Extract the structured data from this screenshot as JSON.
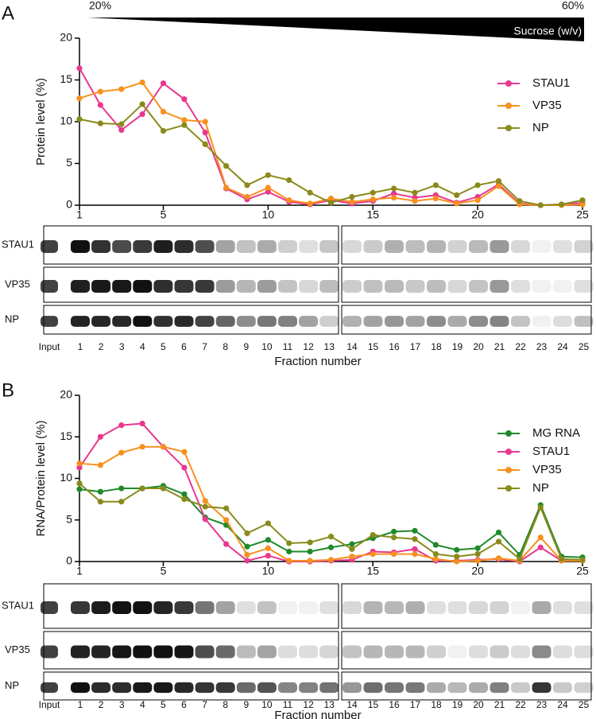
{
  "chart_data": [
    {
      "type": "line",
      "panel_label": "A",
      "gradient": {
        "start": "20%",
        "end": "60%",
        "label": "Sucrose (w/v)"
      },
      "ylabel": "Protein level (%)",
      "x": [
        1,
        2,
        3,
        4,
        5,
        6,
        7,
        8,
        9,
        10,
        11,
        12,
        13,
        14,
        15,
        16,
        17,
        18,
        19,
        20,
        21,
        22,
        23,
        24,
        25
      ],
      "xlim": [
        1,
        25
      ],
      "xticks": [
        1,
        5,
        10,
        15,
        20,
        25
      ],
      "ylim": [
        0,
        20
      ],
      "yticks": [
        0,
        5,
        10,
        15,
        20
      ],
      "legend": "upper right",
      "series": [
        {
          "name": "STAU1",
          "color": "#e8388f",
          "values": [
            16.4,
            12.0,
            9.0,
            10.9,
            14.6,
            12.7,
            8.7,
            2.0,
            0.7,
            1.6,
            0.4,
            0.1,
            0.6,
            0.2,
            0.5,
            1.4,
            0.9,
            1.2,
            0.3,
            1.0,
            2.5,
            0.2,
            0.0,
            0.1,
            0.3
          ]
        },
        {
          "name": "VP35",
          "color": "#f7901e",
          "values": [
            12.8,
            13.6,
            13.9,
            14.7,
            11.2,
            10.2,
            10.0,
            2.1,
            1.0,
            2.1,
            0.6,
            0.2,
            0.8,
            0.4,
            0.7,
            0.9,
            0.5,
            0.8,
            0.2,
            0.6,
            2.3,
            0.1,
            0.0,
            0.0,
            0.1
          ]
        },
        {
          "name": "NP",
          "color": "#8a8a1c",
          "values": [
            10.3,
            9.8,
            9.7,
            12.1,
            8.9,
            9.6,
            7.3,
            4.7,
            2.4,
            3.6,
            3.0,
            1.5,
            0.3,
            1.0,
            1.5,
            2.0,
            1.5,
            2.4,
            1.2,
            2.4,
            2.9,
            0.5,
            0.0,
            0.1,
            0.6
          ]
        }
      ],
      "blot": {
        "rows": [
          "STAU1",
          "VP35",
          "NP"
        ],
        "lanes": [
          "Input",
          "1",
          "2",
          "3",
          "4",
          "5",
          "6",
          "7",
          "8",
          "9",
          "10",
          "11",
          "12",
          "13",
          "14",
          "15",
          "16",
          "17",
          "18",
          "19",
          "20",
          "21",
          "22",
          "23",
          "24",
          "25"
        ],
        "xlabel": "Fraction number"
      }
    },
    {
      "type": "line",
      "panel_label": "B",
      "ylabel": "RNA/Protein level (%)",
      "x": [
        1,
        2,
        3,
        4,
        5,
        6,
        7,
        8,
        9,
        10,
        11,
        12,
        13,
        14,
        15,
        16,
        17,
        18,
        19,
        20,
        21,
        22,
        23,
        24,
        25
      ],
      "xlim": [
        1,
        25
      ],
      "xticks": [
        1,
        5,
        10,
        15,
        20,
        25
      ],
      "ylim": [
        0,
        20
      ],
      "yticks": [
        0,
        5,
        10,
        15,
        20
      ],
      "legend": "upper right",
      "series": [
        {
          "name": "MG RNA",
          "color": "#1f8a2a",
          "values": [
            8.7,
            8.4,
            8.8,
            8.8,
            9.1,
            8.1,
            5.3,
            4.4,
            1.8,
            2.6,
            1.2,
            1.2,
            1.7,
            2.1,
            2.8,
            3.6,
            3.7,
            2.0,
            1.4,
            1.6,
            3.5,
            0.8,
            6.8,
            0.6,
            0.5
          ]
        },
        {
          "name": "STAU1",
          "color": "#e8388f",
          "values": [
            11.3,
            15.0,
            16.4,
            16.6,
            13.8,
            11.3,
            5.1,
            2.1,
            0.1,
            0.7,
            0.0,
            0.0,
            0.1,
            0.2,
            1.2,
            1.1,
            1.5,
            0.1,
            0.1,
            0.2,
            0.3,
            0.0,
            1.7,
            0.1,
            0.1
          ]
        },
        {
          "name": "VP35",
          "color": "#f7901e",
          "values": [
            11.8,
            11.6,
            13.1,
            13.8,
            13.8,
            13.2,
            7.3,
            5.0,
            0.8,
            1.6,
            0.1,
            0.1,
            0.2,
            0.6,
            0.9,
            0.9,
            0.9,
            0.3,
            0.0,
            0.1,
            0.4,
            0.1,
            2.9,
            0.1,
            0.1
          ]
        },
        {
          "name": "NP",
          "color": "#8a8a1c",
          "values": [
            9.4,
            7.2,
            7.2,
            8.8,
            8.8,
            7.5,
            6.6,
            6.4,
            3.4,
            4.6,
            2.2,
            2.3,
            3.0,
            1.5,
            3.2,
            2.9,
            2.7,
            0.9,
            0.6,
            0.9,
            2.4,
            0.3,
            6.5,
            0.3,
            0.2
          ]
        }
      ],
      "blot": {
        "rows": [
          "STAU1",
          "VP35",
          "NP"
        ],
        "lanes": [
          "Input",
          "1",
          "2",
          "3",
          "4",
          "5",
          "6",
          "7",
          "8",
          "9",
          "10",
          "11",
          "12",
          "13",
          "14",
          "15",
          "16",
          "17",
          "18",
          "19",
          "20",
          "21",
          "22",
          "23",
          "24",
          "25"
        ],
        "xlabel": "Fraction number"
      }
    }
  ]
}
